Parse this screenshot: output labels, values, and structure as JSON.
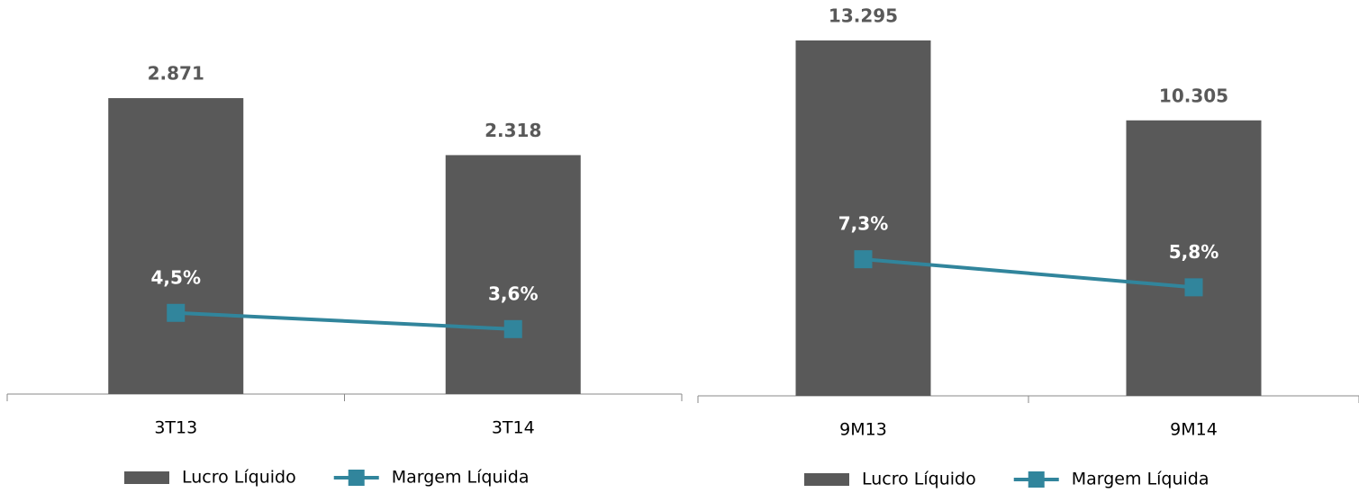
{
  "chart_data": [
    {
      "type": "bar",
      "categories": [
        "3T13",
        "3T14"
      ],
      "series": [
        {
          "name": "Lucro Líquido",
          "type": "bar",
          "color": "#595959",
          "values": [
            2871,
            2318
          ],
          "value_labels": [
            "2.871",
            "2.318"
          ]
        },
        {
          "name": "Margem Líquida",
          "type": "line",
          "axis": "y2",
          "color": "#31859c",
          "values": [
            4.5,
            3.6
          ],
          "value_labels": [
            "4,5%",
            "3,6%"
          ]
        }
      ],
      "ylim": [
        0,
        3500
      ],
      "y2lim": [
        0,
        20
      ],
      "legend": "bottom"
    },
    {
      "type": "bar",
      "categories": [
        "9M13",
        "9M14"
      ],
      "series": [
        {
          "name": "Lucro Líquido",
          "type": "bar",
          "color": "#595959",
          "values": [
            13295,
            10305
          ],
          "value_labels": [
            "13.295",
            "10.305"
          ]
        },
        {
          "name": "Margem Líquida",
          "type": "line",
          "axis": "y2",
          "color": "#31859c",
          "values": [
            7.3,
            5.8
          ],
          "value_labels": [
            "7,3%",
            "5,8%"
          ]
        }
      ],
      "ylim": [
        0,
        14000
      ],
      "y2lim": [
        0,
        20
      ],
      "legend": "bottom"
    }
  ]
}
